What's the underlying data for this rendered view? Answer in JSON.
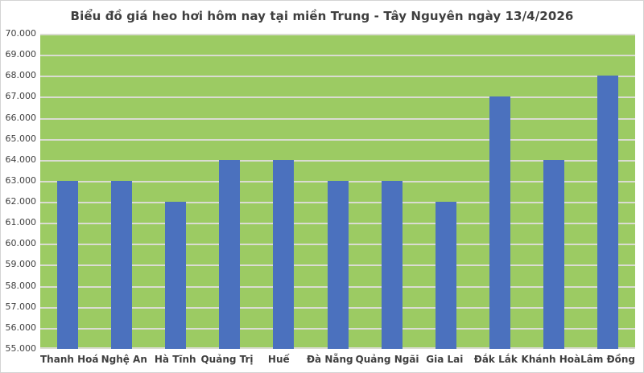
{
  "title": "Biểu đồ giá heo hơi hôm nay tại miền Trung - Tây Nguyên ngày 13/4/2026",
  "colors": {
    "plot_background": "#9ccb63",
    "bar": "#4b71be",
    "gridline": "#dadcd2",
    "text": "#3f3f3f",
    "canvas_border": "#d4d4d4"
  },
  "chart_data": {
    "type": "bar",
    "title": "Biểu đồ giá heo hơi hôm nay tại miền Trung - Tây Nguyên ngày 13/4/2026",
    "categories": [
      "Thanh Hoá",
      "Nghệ An",
      "Hà Tĩnh",
      "Quảng Trị",
      "Huế",
      "Đà Nẵng",
      "Quảng Ngãi",
      "Gia Lai",
      "Đắk Lắk",
      "Khánh Hoà",
      "Lâm Đồng"
    ],
    "values": [
      63000,
      63000,
      62000,
      64000,
      64000,
      63000,
      63000,
      62000,
      67000,
      64000,
      68000
    ],
    "xlabel": "",
    "ylabel": "",
    "ylim": [
      55000,
      70000
    ],
    "ytick_step": 1000,
    "ytick_labels": [
      "70.000",
      "69.000",
      "68.000",
      "67.000",
      "66.000",
      "65.000",
      "64.000",
      "63.000",
      "62.000",
      "61.000",
      "60.000",
      "59.000",
      "58.000",
      "57.000",
      "56.000",
      "55.000"
    ],
    "grid": "horizontal",
    "legend": "none"
  }
}
